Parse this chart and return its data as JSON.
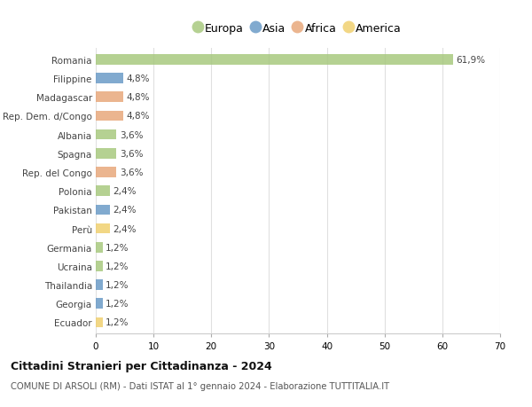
{
  "categories": [
    "Romania",
    "Filippine",
    "Madagascar",
    "Rep. Dem. d/Congo",
    "Albania",
    "Spagna",
    "Rep. del Congo",
    "Polonia",
    "Pakistan",
    "Perù",
    "Germania",
    "Ucraina",
    "Thailandia",
    "Georgia",
    "Ecuador"
  ],
  "values": [
    61.9,
    4.8,
    4.8,
    4.8,
    3.6,
    3.6,
    3.6,
    2.4,
    2.4,
    2.4,
    1.2,
    1.2,
    1.2,
    1.2,
    1.2
  ],
  "labels": [
    "61,9%",
    "4,8%",
    "4,8%",
    "4,8%",
    "3,6%",
    "3,6%",
    "3,6%",
    "2,4%",
    "2,4%",
    "2,4%",
    "1,2%",
    "1,2%",
    "1,2%",
    "1,2%",
    "1,2%"
  ],
  "continents": [
    "Europa",
    "Asia",
    "Africa",
    "Africa",
    "Europa",
    "Europa",
    "Africa",
    "Europa",
    "Asia",
    "America",
    "Europa",
    "Europa",
    "Asia",
    "Asia",
    "America"
  ],
  "continent_colors": {
    "Europa": "#a8c97f",
    "Asia": "#6b9bc7",
    "Africa": "#e8a87c",
    "America": "#f0d070"
  },
  "legend_order": [
    "Europa",
    "Asia",
    "Africa",
    "America"
  ],
  "xlim": [
    0,
    70
  ],
  "xticks": [
    0,
    10,
    20,
    30,
    40,
    50,
    60,
    70
  ],
  "title": "Cittadini Stranieri per Cittadinanza - 2024",
  "subtitle": "COMUNE DI ARSOLI (RM) - Dati ISTAT al 1° gennaio 2024 - Elaborazione TUTTITALIA.IT",
  "background_color": "#ffffff",
  "grid_color": "#e0e0e0",
  "bar_height": 0.55
}
